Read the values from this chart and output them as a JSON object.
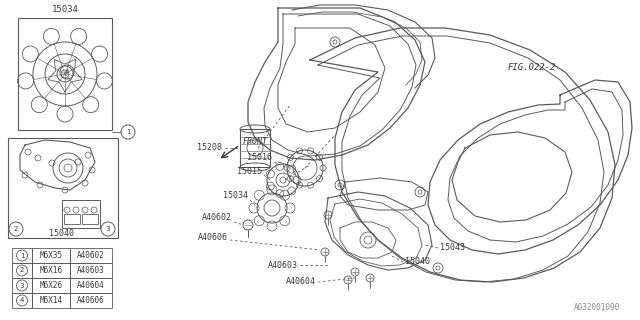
{
  "bg_color": "#ffffff",
  "line_color": "#5a5a5a",
  "text_color": "#3a3a3a",
  "doc_number": "A032001090",
  "table_rows": [
    [
      "1",
      "M6X35",
      "A40602"
    ],
    [
      "2",
      "M6X16",
      "A40603"
    ],
    [
      "3",
      "M6X26",
      "A40604"
    ],
    [
      "4",
      "M6X14",
      "A40606"
    ]
  ]
}
